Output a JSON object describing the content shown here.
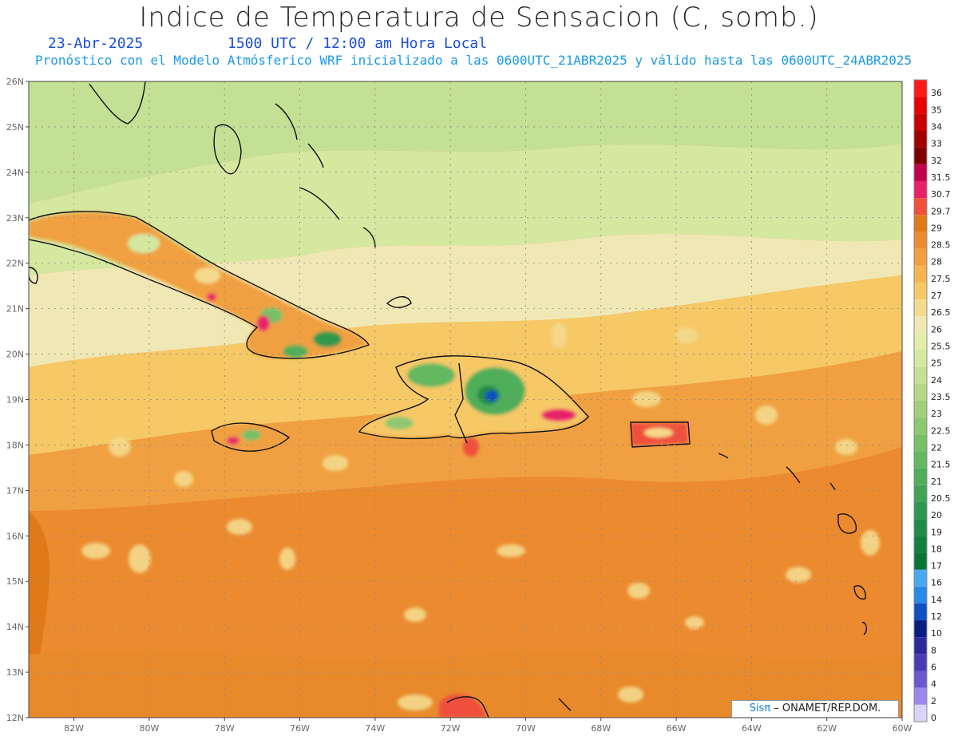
{
  "header": {
    "title": "Indice de Temperatura de Sensacion (C, somb.)",
    "date": "23-Abr-2025",
    "time": "1500 UTC / 12:00 am Hora Local",
    "subtitle": "Pronóstico con el Modelo Atmósferico WRF inicializado a las 0600UTC_21ABR2025 y válido hasta las  0600UTC_24ABR2025"
  },
  "map": {
    "lat_ticks": [
      "26N",
      "25N",
      "24N",
      "23N",
      "22N",
      "21N",
      "20N",
      "19N",
      "18N",
      "17N",
      "16N",
      "15N",
      "14N",
      "13N",
      "12N"
    ],
    "lon_ticks": [
      "82W",
      "80W",
      "78W",
      "76W",
      "74W",
      "72W",
      "70W",
      "68W",
      "66W",
      "64W",
      "62W",
      "60W"
    ],
    "lat_range": [
      12,
      26
    ],
    "lon_range": [
      -83.2,
      -60
    ]
  },
  "colorbar": {
    "levels": [
      {
        "label": "36",
        "color": "#ff1a1a"
      },
      {
        "label": "35",
        "color": "#e60000"
      },
      {
        "label": "34",
        "color": "#c80000"
      },
      {
        "label": "33",
        "color": "#a00000"
      },
      {
        "label": "32",
        "color": "#800000"
      },
      {
        "label": "31.5",
        "color": "#c0004a"
      },
      {
        "label": "30.7",
        "color": "#e8206a"
      },
      {
        "label": "29.7",
        "color": "#f0503c"
      },
      {
        "label": "29",
        "color": "#e07a18"
      },
      {
        "label": "28.5",
        "color": "#ec8a30"
      },
      {
        "label": "28",
        "color": "#f0a040"
      },
      {
        "label": "27.5",
        "color": "#f4b450"
      },
      {
        "label": "27",
        "color": "#f6c866"
      },
      {
        "label": "26.5",
        "color": "#f4da8c"
      },
      {
        "label": "26",
        "color": "#f0e8b4"
      },
      {
        "label": "25.5",
        "color": "#e4eea8"
      },
      {
        "label": "25",
        "color": "#d4e8a0"
      },
      {
        "label": "24",
        "color": "#c4e094"
      },
      {
        "label": "23.5",
        "color": "#b4d888"
      },
      {
        "label": "23",
        "color": "#a0d07c"
      },
      {
        "label": "22.5",
        "color": "#8cc870"
      },
      {
        "label": "22",
        "color": "#78c068"
      },
      {
        "label": "21.5",
        "color": "#64b860"
      },
      {
        "label": "21",
        "color": "#50ae5a"
      },
      {
        "label": "20.5",
        "color": "#40a454"
      },
      {
        "label": "20",
        "color": "#30984e"
      },
      {
        "label": "19",
        "color": "#208c46"
      },
      {
        "label": "18",
        "color": "#12803e"
      },
      {
        "label": "17",
        "color": "#0a7436"
      },
      {
        "label": "16",
        "color": "#4aa8f0"
      },
      {
        "label": "14",
        "color": "#2a88e8"
      },
      {
        "label": "12",
        "color": "#1050c0"
      },
      {
        "label": "10",
        "color": "#0a1e80"
      },
      {
        "label": "8",
        "color": "#2a2a9c"
      },
      {
        "label": "6",
        "color": "#4a3cb4"
      },
      {
        "label": "4",
        "color": "#6a58d0"
      },
      {
        "label": "2",
        "color": "#9c88ec"
      },
      {
        "label": "0",
        "color": "#d8d4f8"
      }
    ]
  },
  "credit": {
    "sis": "Sisπ",
    "org": " – ONAMET/REP.DOM."
  }
}
